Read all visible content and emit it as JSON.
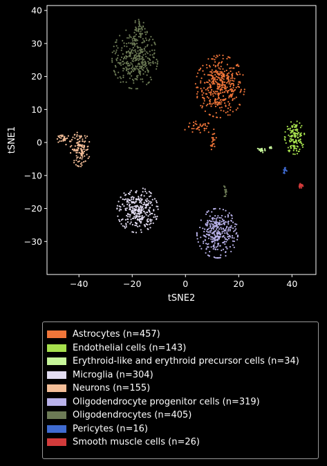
{
  "chart_data": {
    "type": "scatter",
    "xlabel": "tSNE2",
    "ylabel": "tSNE1",
    "xlim": [
      -52,
      49
    ],
    "ylim": [
      -40,
      41.5
    ],
    "xticks": [
      -40,
      -20,
      0,
      20,
      40
    ],
    "yticks": [
      -30,
      -20,
      -10,
      0,
      10,
      20,
      30,
      40
    ],
    "xtick_labels": [
      "−40",
      "−20",
      "0",
      "20",
      "40"
    ],
    "ytick_labels": [
      "−30",
      "−20",
      "−10",
      "0",
      "10",
      "20",
      "30",
      "40"
    ],
    "grid": false,
    "legend_position": "below",
    "series": [
      {
        "name": "Astrocytes (n=457)",
        "color": "#f07539",
        "clusters": [
          {
            "cx": 13,
            "cy": 17,
            "sx": 4.2,
            "sy": 4.3,
            "n": 400
          },
          {
            "cx": 5,
            "cy": 4.5,
            "sx": 2.5,
            "sy": 0.9,
            "n": 35
          },
          {
            "cx": 10.5,
            "cy": 0.5,
            "sx": 0.5,
            "sy": 1.6,
            "n": 22
          }
        ]
      },
      {
        "name": "Endothelial cells (n=143)",
        "color": "#a6e04d",
        "clusters": [
          {
            "cx": 41,
            "cy": 1.5,
            "sx": 1.7,
            "sy": 2.3,
            "n": 143
          }
        ]
      },
      {
        "name": "Erythroid-like and erythroid precursor cells (n=34)",
        "color": "#c6f59a",
        "clusters": [
          {
            "cx": 28.5,
            "cy": -2.3,
            "sx": 0.8,
            "sy": 0.4,
            "n": 26
          },
          {
            "cx": 32,
            "cy": -1.6,
            "sx": 0.4,
            "sy": 0.2,
            "n": 8
          }
        ]
      },
      {
        "name": "Microglia (n=304)",
        "color": "#e3ddf2",
        "clusters": [
          {
            "cx": -18,
            "cy": -20.5,
            "sx": 3.5,
            "sy": 3.1,
            "n": 304
          }
        ]
      },
      {
        "name": "Neurons (n=155)",
        "color": "#f4be98",
        "clusters": [
          {
            "cx": -39.5,
            "cy": -2,
            "sx": 1.7,
            "sy": 2.4,
            "n": 125
          },
          {
            "cx": -45.5,
            "cy": 1,
            "sx": 1.2,
            "sy": 0.8,
            "n": 30
          }
        ]
      },
      {
        "name": "Oligodendrocyte progenitor cells (n=319)",
        "color": "#b9b2ea",
        "clusters": [
          {
            "cx": 12,
            "cy": -27.5,
            "sx": 3.5,
            "sy": 3.4,
            "n": 319
          }
        ]
      },
      {
        "name": "Oligodendrocytes (n=405)",
        "color": "#6c7a55",
        "clusters": [
          {
            "cx": -19,
            "cy": 25.5,
            "sx": 3.9,
            "sy": 4.2,
            "n": 345
          },
          {
            "cx": -17,
            "cy": 34,
            "sx": 1.2,
            "sy": 1.8,
            "n": 45
          },
          {
            "cx": 15,
            "cy": -14.5,
            "sx": 0.3,
            "sy": 1.1,
            "n": 15
          }
        ]
      },
      {
        "name": "Pericytes (n=16)",
        "color": "#3f6bd1",
        "clusters": [
          {
            "cx": 37.5,
            "cy": -8.5,
            "sx": 0.4,
            "sy": 0.5,
            "n": 16
          }
        ]
      },
      {
        "name": "Smooth muscle cells (n=26)",
        "color": "#d23b3b",
        "clusters": [
          {
            "cx": 43.3,
            "cy": -13,
            "sx": 0.4,
            "sy": 0.4,
            "n": 26
          }
        ]
      }
    ]
  }
}
